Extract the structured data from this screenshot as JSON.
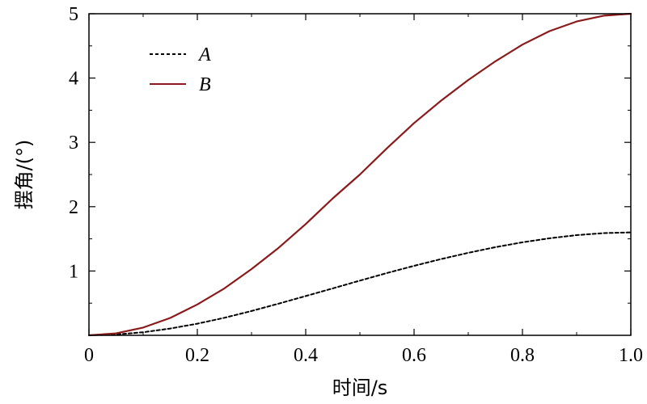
{
  "chart_data": {
    "type": "line",
    "xlabel": "时间/s",
    "ylabel": "摆角/(°)",
    "xlim": [
      0,
      1.0
    ],
    "ylim": [
      0,
      5
    ],
    "xticks": [
      0,
      0.2,
      0.4,
      0.6,
      0.8,
      1.0
    ],
    "xtick_labels": [
      "0",
      "0.2",
      "0.4",
      "0.6",
      "0.8",
      "1.0"
    ],
    "yticks": [
      1,
      2,
      3,
      4,
      5
    ],
    "ytick_labels": [
      "1",
      "2",
      "3",
      "4",
      "5"
    ],
    "grid": false,
    "legend_position": "top-left",
    "series": [
      {
        "name": "A",
        "style": "dashed",
        "color": "#000000",
        "x": [
          0,
          0.05,
          0.1,
          0.15,
          0.2,
          0.25,
          0.3,
          0.35,
          0.4,
          0.45,
          0.5,
          0.55,
          0.6,
          0.65,
          0.7,
          0.75,
          0.8,
          0.85,
          0.9,
          0.95,
          1.0
        ],
        "y": [
          0,
          0.012,
          0.048,
          0.105,
          0.181,
          0.273,
          0.378,
          0.492,
          0.61,
          0.73,
          0.85,
          0.968,
          1.081,
          1.186,
          1.283,
          1.37,
          1.446,
          1.509,
          1.558,
          1.589,
          1.6
        ]
      },
      {
        "name": "B",
        "style": "solid",
        "color": "#8B1A1A",
        "x": [
          0,
          0.05,
          0.1,
          0.15,
          0.2,
          0.25,
          0.3,
          0.35,
          0.4,
          0.45,
          0.5,
          0.55,
          0.6,
          0.65,
          0.7,
          0.75,
          0.8,
          0.85,
          0.9,
          0.95,
          1.0
        ],
        "y": [
          0,
          0.03,
          0.12,
          0.27,
          0.48,
          0.73,
          1.03,
          1.36,
          1.73,
          2.13,
          2.5,
          2.91,
          3.3,
          3.65,
          3.97,
          4.26,
          4.52,
          4.73,
          4.88,
          4.97,
          5.0
        ]
      }
    ]
  }
}
